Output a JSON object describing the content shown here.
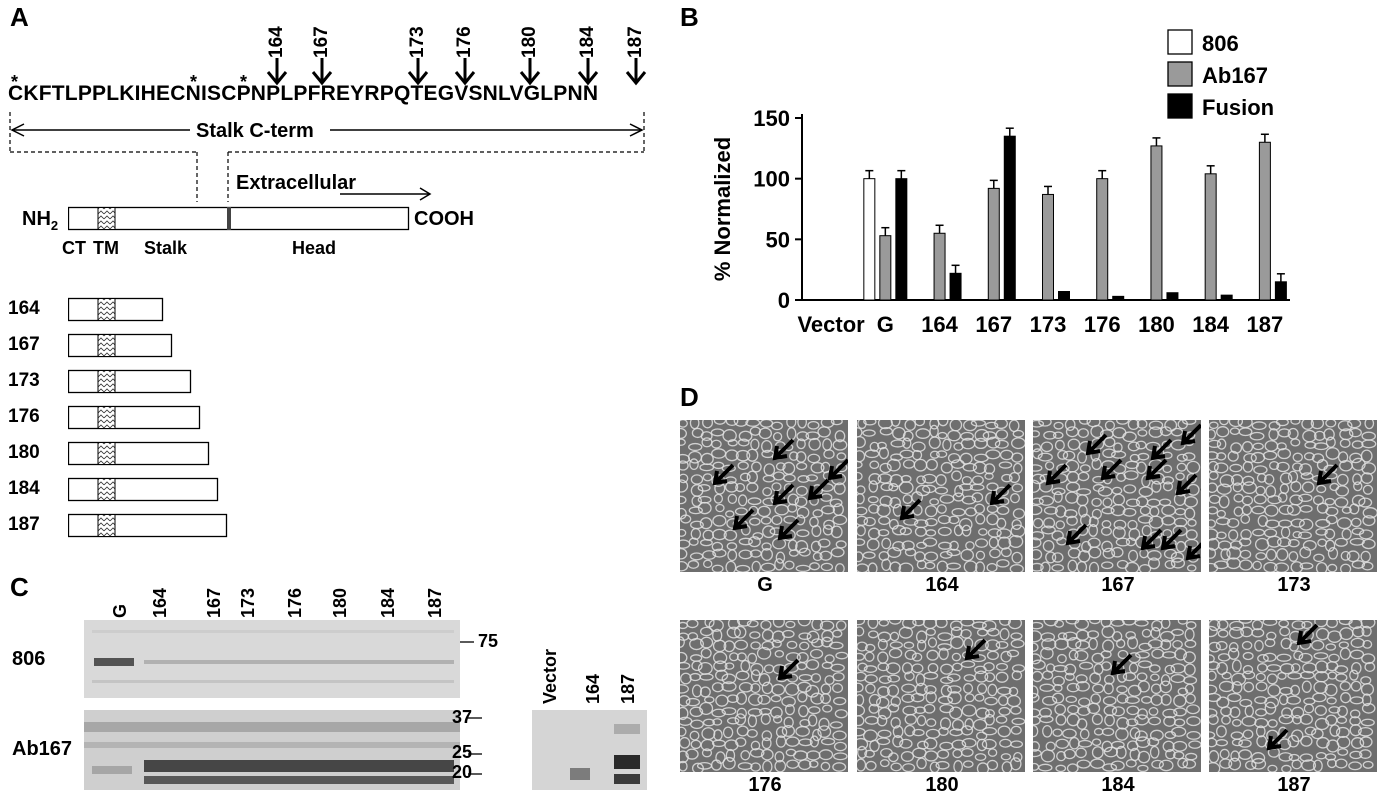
{
  "panels": {
    "a": "A",
    "b": "B",
    "c": "C",
    "d": "D"
  },
  "panel_a": {
    "sequence": "CKFTLPPLKIHECNISCPNPLPFREYRPQTEGVSNLVGLPNN",
    "stars": [
      "*",
      "*",
      "*"
    ],
    "arrow_positions": [
      "164",
      "167",
      "173",
      "176",
      "180",
      "184",
      "187"
    ],
    "stalk_cterm_label": "Stalk C-term",
    "extracellular_label": "Extracellular",
    "nh2_label": "NH",
    "nh2_sub": "2",
    "cooh_label": "COOH",
    "ct_label": "CT",
    "tm_label": "TM",
    "stalk_label": "Stalk",
    "head_label": "Head",
    "constructs": [
      "164",
      "167",
      "173",
      "176",
      "180",
      "184",
      "187"
    ]
  },
  "chart_data": {
    "type": "bar",
    "title": "",
    "xlabel": "",
    "ylabel": "% Normalized",
    "ylim": [
      0,
      150
    ],
    "yticks": [
      "0",
      "50",
      "100",
      "150"
    ],
    "categories": [
      "Vector",
      "G",
      "164",
      "167",
      "173",
      "176",
      "180",
      "184",
      "187"
    ],
    "legend_position": "top-right",
    "series": [
      {
        "name": "806",
        "color": "#ffffff",
        "values": [
          0,
          100,
          0,
          0,
          0,
          0,
          0,
          0,
          0
        ]
      },
      {
        "name": "Ab167",
        "color": "#9a9a9a",
        "values": [
          0,
          53,
          55,
          92,
          87,
          100,
          127,
          104,
          130
        ]
      },
      {
        "name": "Fusion",
        "color": "#000000",
        "values": [
          0,
          100,
          22,
          135,
          7,
          3,
          6,
          4,
          15
        ]
      }
    ]
  },
  "panel_c": {
    "lanes": [
      "G",
      "164",
      "167",
      "173",
      "176",
      "180",
      "184",
      "187"
    ],
    "row_labels": [
      "806",
      "Ab167"
    ],
    "mw_top": "75",
    "mw_bottom": [
      "37",
      "25",
      "20"
    ],
    "right_lanes": [
      "Vector",
      "164",
      "187"
    ]
  },
  "panel_d": {
    "labels_top": [
      "G",
      "164",
      "167",
      "173"
    ],
    "labels_bottom": [
      "176",
      "180",
      "184",
      "187"
    ]
  }
}
